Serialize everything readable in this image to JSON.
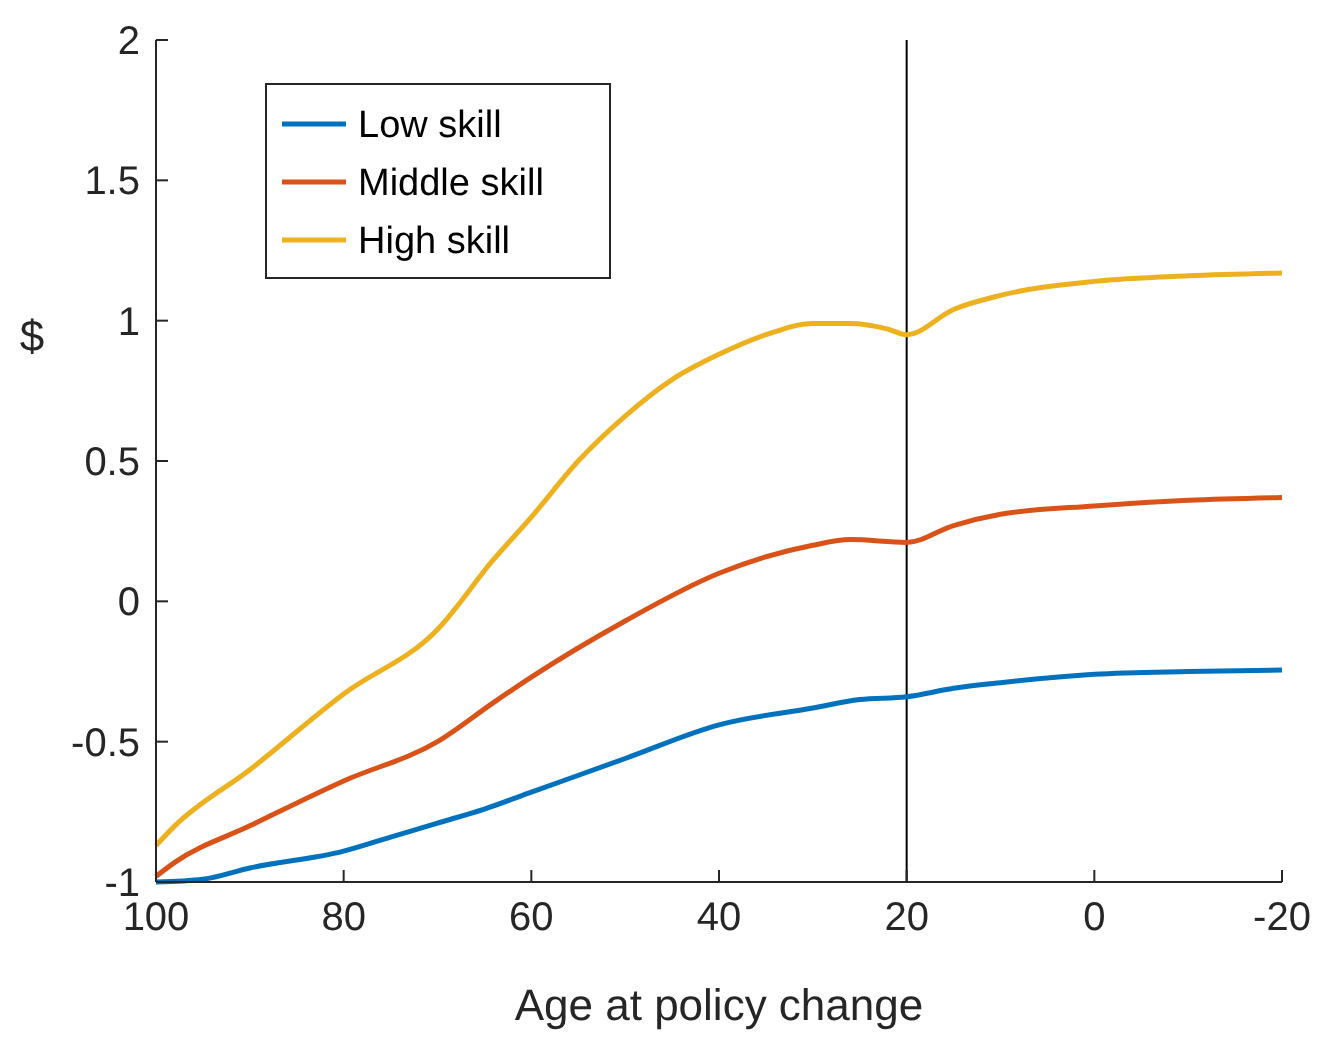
{
  "chart_data": {
    "type": "line",
    "xlabel": "Age at policy change",
    "ylabel": "$",
    "xlim": [
      100,
      -20
    ],
    "xticks": [
      100,
      80,
      60,
      40,
      20,
      0,
      -20
    ],
    "ylim": [
      -1,
      2
    ],
    "yticks": [
      -1,
      -0.5,
      0,
      0.5,
      1,
      1.5,
      2
    ],
    "grid": false,
    "legend": "top left",
    "line_style": "solid",
    "ref_lines": [
      {
        "axis": "x",
        "value": 20,
        "color": "#000000"
      }
    ],
    "series": [
      {
        "name": "Low skill",
        "color": "#0072bd",
        "x": [
          100,
          95,
          90,
          80,
          75,
          70,
          65,
          60,
          50,
          40,
          30,
          25,
          20,
          15,
          10,
          0,
          -10,
          -20
        ],
        "values": [
          -1,
          -0.99,
          -0.95,
          -0.89,
          -0.84,
          -0.79,
          -0.74,
          -0.68,
          -0.56,
          -0.44,
          -0.38,
          -0.35,
          -0.34,
          -0.31,
          -0.29,
          -0.26,
          -0.25,
          -0.245
        ]
      },
      {
        "name": "Middle skill",
        "color": "#d95319",
        "x": [
          100,
          98,
          90,
          80,
          70,
          64,
          60,
          50,
          40,
          30,
          26,
          20,
          15,
          10,
          0,
          -10,
          -20
        ],
        "values": [
          -0.98,
          -0.93,
          -0.8,
          -0.64,
          -0.5,
          -0.36,
          -0.27,
          -0.07,
          0.1,
          0.2,
          0.22,
          0.21,
          0.27,
          0.31,
          0.34,
          0.36,
          0.37
        ]
      },
      {
        "name": "High skill",
        "color": "#edb120",
        "x": [
          100,
          98,
          90,
          80,
          70,
          64,
          60,
          55,
          50,
          45,
          40,
          35,
          30,
          26,
          22,
          20,
          15,
          10,
          0,
          -10,
          -20
        ],
        "values": [
          -0.87,
          -0.8,
          -0.6,
          -0.33,
          -0.1,
          0.15,
          0.3,
          0.5,
          0.66,
          0.79,
          0.88,
          0.95,
          0.99,
          0.99,
          0.97,
          0.95,
          1.04,
          1.09,
          1.14,
          1.16,
          1.17
        ]
      }
    ]
  }
}
